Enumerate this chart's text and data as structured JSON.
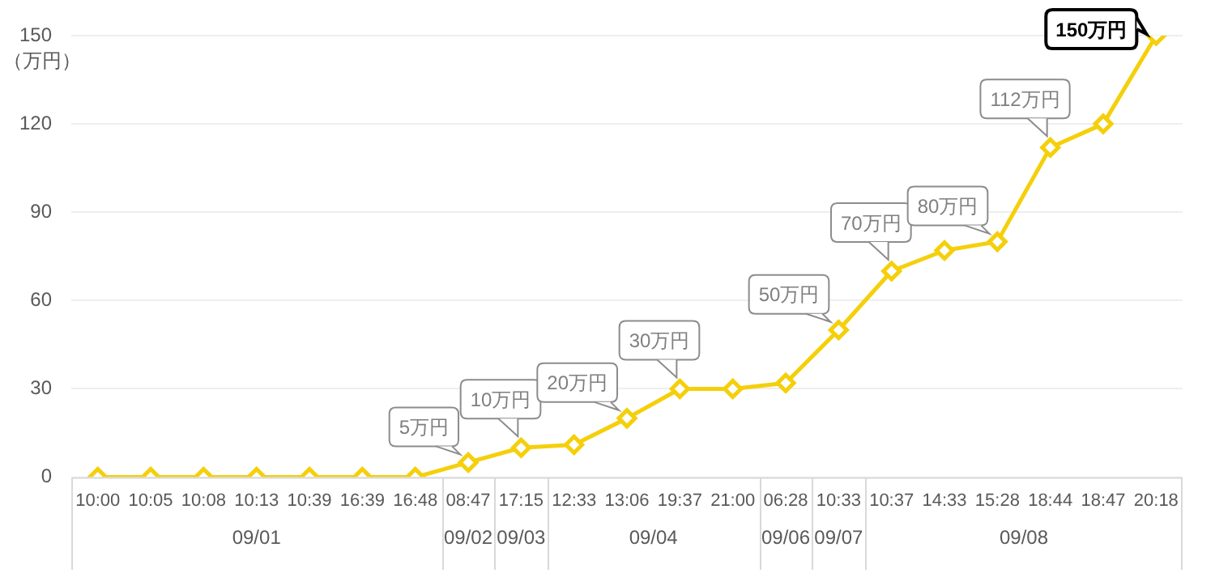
{
  "chart_data": {
    "type": "line",
    "ylabel": "（万円）",
    "categories": [
      "10:00",
      "10:05",
      "10:08",
      "10:13",
      "10:39",
      "16:39",
      "16:48",
      "08:47",
      "17:15",
      "12:33",
      "13:06",
      "19:37",
      "21:00",
      "06:28",
      "10:33",
      "10:37",
      "14:33",
      "15:28",
      "18:44",
      "18:47",
      "20:18"
    ],
    "series": [
      {
        "color": "#f5cf0a",
        "values": [
          0,
          0,
          0,
          0,
          0,
          0,
          0,
          5,
          10,
          11,
          20,
          30,
          30,
          32,
          50,
          70,
          77,
          80,
          112,
          120,
          150
        ],
        "value_labels": [
          null,
          null,
          null,
          null,
          null,
          null,
          null,
          "5万円",
          "10万円",
          null,
          "20万円",
          "30万円",
          null,
          null,
          "50万円",
          "70万円",
          null,
          "80万円",
          "112万円",
          null,
          "150万円"
        ]
      }
    ],
    "annotations": [
      "09/01",
      "09/02",
      "09/03",
      "09/04",
      "09/06",
      "09/07",
      "09/08"
    ],
    "ylim": [
      0,
      150
    ],
    "yticks": [
      0,
      30,
      60,
      90,
      120,
      150
    ],
    "grid": "y",
    "legend": false,
    "marker": "diamond",
    "line_style": "solid"
  }
}
